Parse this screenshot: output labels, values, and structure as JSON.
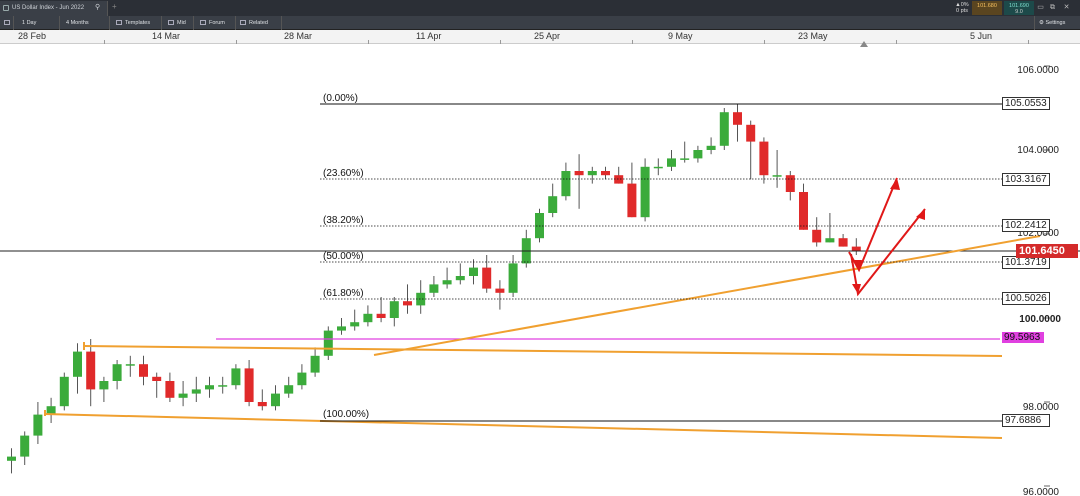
{
  "window": {
    "tab_title": "US Dollar Index - Jun 2022",
    "change": {
      "pct": "▲0%",
      "pts": "0 pts"
    },
    "sell_price": "101.680",
    "buy_price": "101.690",
    "spread": "9.0"
  },
  "toolbar": {
    "interval": "1 Day",
    "range": "4 Months",
    "templates": "Templates",
    "mid": "Mid",
    "forum": "Forum",
    "related": "Related",
    "settings": "Settings"
  },
  "date_axis": [
    "28 Feb",
    "14 Mar",
    "28 Mar",
    "11 Apr",
    "25 Apr",
    "9 May",
    "23 May",
    "5 Jun"
  ],
  "price_axis": [
    "106.0000",
    "104.0000",
    "102.0000",
    "100.0000",
    "98.0000",
    "96.0000"
  ],
  "fib": [
    {
      "label": "(0.00%)",
      "price": "105.0553"
    },
    {
      "label": "(23.60%)",
      "price": "103.3167"
    },
    {
      "label": "(38.20%)",
      "price": "102.2412"
    },
    {
      "label": "(50.00%)",
      "price": "101.3719"
    },
    {
      "label": "(61.80%)",
      "price": "100.5026"
    },
    {
      "label": "(100.00%)",
      "price": "97.6886"
    }
  ],
  "current_price": "101.6450",
  "support_price": "99.5963",
  "colors": {
    "up": "#3bab3b",
    "down": "#e02a2a",
    "trend": "#f0a030",
    "support": "#e040e0",
    "arrow": "#e01818"
  },
  "chart_data": {
    "type": "candlestick",
    "x": [
      "28 Feb",
      "1 Mar",
      "2 Mar",
      "3 Mar",
      "4 Mar",
      "7 Mar",
      "8 Mar",
      "9 Mar",
      "10 Mar",
      "11 Mar",
      "14 Mar",
      "15 Mar",
      "16 Mar",
      "17 Mar",
      "18 Mar",
      "21 Mar",
      "22 Mar",
      "23 Mar",
      "24 Mar",
      "25 Mar",
      "28 Mar",
      "29 Mar",
      "30 Mar",
      "31 Mar",
      "1 Apr",
      "4 Apr",
      "5 Apr",
      "6 Apr",
      "7 Apr",
      "8 Apr",
      "11 Apr",
      "12 Apr",
      "13 Apr",
      "14 Apr",
      "15 Apr",
      "18 Apr",
      "19 Apr",
      "20 Apr",
      "21 Apr",
      "22 Apr",
      "25 Apr",
      "26 Apr",
      "27 Apr",
      "28 Apr",
      "29 Apr",
      "2 May",
      "3 May",
      "4 May",
      "5 May",
      "6 May",
      "9 May",
      "10 May",
      "11 May",
      "12 May",
      "13 May",
      "16 May",
      "17 May",
      "18 May",
      "19 May",
      "20 May",
      "23 May",
      "24 May",
      "25 May",
      "26 May",
      "27 May"
    ],
    "open": [
      96.6,
      96.7,
      97.2,
      97.7,
      97.9,
      98.6,
      99.2,
      98.3,
      98.5,
      98.9,
      98.9,
      98.6,
      98.5,
      98.1,
      98.2,
      98.3,
      98.4,
      98.4,
      98.8,
      98.0,
      97.9,
      98.2,
      98.4,
      98.7,
      99.1,
      99.7,
      99.8,
      99.9,
      100.1,
      100.0,
      100.4,
      100.3,
      100.6,
      100.8,
      100.9,
      101.0,
      101.2,
      100.7,
      100.6,
      101.3,
      101.9,
      102.5,
      102.9,
      103.5,
      103.4,
      103.5,
      103.4,
      103.2,
      102.4,
      103.6,
      103.6,
      103.8,
      103.8,
      104.0,
      104.1,
      104.9,
      104.6,
      104.2,
      103.4,
      103.4,
      103.0,
      102.1,
      101.8,
      101.9,
      101.7
    ],
    "high": [
      96.9,
      97.3,
      98.0,
      98.1,
      98.7,
      99.4,
      99.5,
      98.6,
      99.0,
      99.1,
      99.1,
      98.7,
      98.7,
      98.5,
      98.6,
      98.6,
      98.6,
      98.9,
      99.0,
      98.3,
      98.4,
      98.6,
      98.9,
      99.3,
      99.8,
      100.0,
      100.2,
      100.3,
      100.5,
      100.5,
      100.8,
      100.9,
      101.0,
      101.2,
      101.3,
      101.4,
      101.5,
      100.9,
      101.5,
      102.1,
      102.6,
      103.2,
      103.7,
      103.9,
      103.6,
      103.6,
      103.6,
      103.7,
      103.8,
      103.8,
      104.0,
      104.2,
      104.1,
      104.3,
      105.0,
      105.1,
      104.7,
      104.3,
      104.0,
      103.5,
      103.2,
      102.4,
      102.5,
      102.0,
      101.9
    ],
    "low": [
      96.3,
      96.5,
      97.0,
      97.5,
      97.8,
      98.2,
      97.9,
      98.0,
      98.3,
      98.6,
      98.4,
      98.1,
      98.0,
      97.9,
      98.0,
      98.1,
      98.2,
      98.3,
      97.9,
      97.8,
      97.8,
      98.1,
      98.3,
      98.6,
      99.0,
      99.6,
      99.7,
      99.8,
      99.9,
      99.8,
      100.1,
      100.1,
      100.5,
      100.7,
      100.8,
      100.8,
      100.6,
      100.2,
      100.5,
      101.2,
      101.8,
      102.4,
      102.8,
      102.6,
      103.2,
      103.3,
      103.2,
      102.4,
      102.3,
      103.4,
      103.5,
      103.7,
      103.7,
      103.9,
      104.0,
      104.2,
      103.3,
      103.2,
      103.1,
      102.8,
      102.1,
      101.7,
      101.8,
      101.7,
      101.5
    ],
    "close": [
      96.7,
      97.2,
      97.7,
      97.9,
      98.6,
      99.2,
      98.3,
      98.5,
      98.9,
      98.9,
      98.6,
      98.5,
      98.1,
      98.2,
      98.3,
      98.4,
      98.4,
      98.8,
      98.0,
      97.9,
      98.2,
      98.4,
      98.7,
      99.1,
      99.7,
      99.8,
      99.9,
      100.1,
      100.0,
      100.4,
      100.3,
      100.6,
      100.8,
      100.9,
      101.0,
      101.2,
      100.7,
      100.6,
      101.3,
      101.9,
      102.5,
      102.9,
      103.5,
      103.4,
      103.5,
      103.4,
      103.2,
      102.4,
      103.6,
      103.6,
      103.8,
      103.8,
      104.0,
      104.1,
      104.9,
      104.6,
      104.2,
      103.4,
      103.4,
      103.0,
      102.1,
      101.8,
      101.9,
      101.7,
      101.6
    ],
    "ylim": [
      95.9,
      106.4
    ],
    "y_ticks": [
      106,
      104,
      102,
      100,
      98,
      96
    ],
    "fibonacci_retracement": [
      105.0553,
      103.3167,
      102.2412,
      101.3719,
      100.5026,
      97.6886
    ],
    "last_price": 101.645,
    "support_level": 99.5963
  }
}
